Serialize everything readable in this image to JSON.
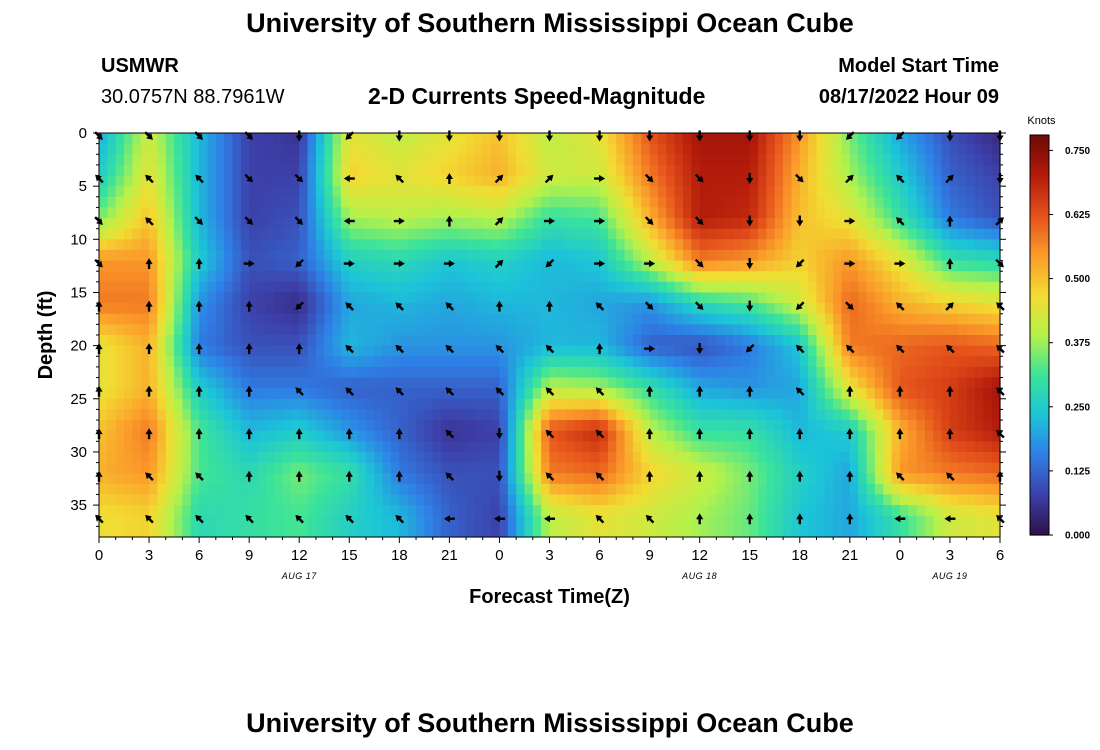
{
  "header": {
    "title": "University of Southern Mississippi Ocean Cube",
    "station": "USMWR",
    "coords": "30.0757N  88.7961W",
    "subtitle": "2-D Currents Speed-Magnitude",
    "model_label": "Model Start Time",
    "model_time": "08/17/2022 Hour 09"
  },
  "footer": {
    "title": "University of Southern Mississippi Ocean Cube"
  },
  "colors": {
    "arrow": "#000000",
    "colormap": [
      "#2c0f4a",
      "#3d3fa8",
      "#2f7fe6",
      "#1cc4d8",
      "#3be39a",
      "#b6f24a",
      "#f2dc32",
      "#fb9a2a",
      "#e4511b",
      "#b21a0a",
      "#6e0a05"
    ]
  },
  "chart_data": {
    "type": "heatmap",
    "title": "2-D Currents Speed-Magnitude",
    "xlabel": "Forecast Time(Z)",
    "ylabel": "Depth (ft)",
    "x_hours": [
      0,
      3,
      6,
      9,
      12,
      15,
      18,
      21,
      24,
      27,
      30,
      33,
      36,
      39,
      42,
      45,
      48,
      51,
      54
    ],
    "x_tick_labels": [
      "0",
      "3",
      "6",
      "9",
      "12",
      "15",
      "18",
      "21",
      "0",
      "3",
      "6",
      "9",
      "12",
      "15",
      "18",
      "21",
      "0",
      "3",
      "6"
    ],
    "date_labels": [
      {
        "label": "AUG 17",
        "hour": 12
      },
      {
        "label": "AUG 18",
        "hour": 36
      },
      {
        "label": "AUG 19",
        "hour": 51
      }
    ],
    "xlim": [
      0,
      54
    ],
    "y_depths": [
      0,
      4,
      8,
      12,
      16,
      20,
      24,
      28,
      32,
      36
    ],
    "y_ticks": [
      0,
      5,
      10,
      15,
      20,
      25,
      30,
      35
    ],
    "ylim": [
      0,
      38
    ],
    "colorbar": {
      "label": "Knots",
      "ticks": [
        "0.000",
        "0.125",
        "0.250",
        "0.375",
        "0.500",
        "0.625",
        "0.750"
      ],
      "range": [
        0,
        0.78
      ]
    },
    "speed": [
      [
        0.2,
        0.42,
        0.22,
        0.08,
        0.06,
        0.45,
        0.4,
        0.45,
        0.5,
        0.4,
        0.45,
        0.62,
        0.72,
        0.72,
        0.55,
        0.35,
        0.2,
        0.1,
        0.04
      ],
      [
        0.25,
        0.45,
        0.22,
        0.08,
        0.08,
        0.48,
        0.45,
        0.48,
        0.52,
        0.42,
        0.42,
        0.58,
        0.7,
        0.7,
        0.52,
        0.38,
        0.25,
        0.12,
        0.08
      ],
      [
        0.35,
        0.5,
        0.22,
        0.08,
        0.1,
        0.38,
        0.4,
        0.38,
        0.4,
        0.3,
        0.32,
        0.52,
        0.7,
        0.68,
        0.5,
        0.45,
        0.3,
        0.15,
        0.1
      ],
      [
        0.55,
        0.55,
        0.25,
        0.1,
        0.12,
        0.26,
        0.28,
        0.24,
        0.26,
        0.22,
        0.24,
        0.4,
        0.58,
        0.55,
        0.48,
        0.55,
        0.45,
        0.3,
        0.28
      ],
      [
        0.58,
        0.58,
        0.18,
        0.08,
        0.05,
        0.2,
        0.22,
        0.2,
        0.22,
        0.22,
        0.2,
        0.18,
        0.28,
        0.32,
        0.42,
        0.6,
        0.52,
        0.48,
        0.45
      ],
      [
        0.45,
        0.52,
        0.15,
        0.1,
        0.1,
        0.22,
        0.18,
        0.18,
        0.18,
        0.22,
        0.22,
        0.12,
        0.1,
        0.15,
        0.24,
        0.58,
        0.6,
        0.62,
        0.6
      ],
      [
        0.45,
        0.52,
        0.25,
        0.15,
        0.15,
        0.12,
        0.12,
        0.12,
        0.12,
        0.4,
        0.38,
        0.3,
        0.2,
        0.18,
        0.2,
        0.45,
        0.62,
        0.65,
        0.72
      ],
      [
        0.5,
        0.58,
        0.32,
        0.22,
        0.25,
        0.18,
        0.12,
        0.06,
        0.08,
        0.62,
        0.68,
        0.4,
        0.3,
        0.3,
        0.22,
        0.25,
        0.52,
        0.65,
        0.7
      ],
      [
        0.52,
        0.55,
        0.32,
        0.28,
        0.35,
        0.3,
        0.15,
        0.1,
        0.1,
        0.58,
        0.6,
        0.48,
        0.42,
        0.35,
        0.26,
        0.2,
        0.55,
        0.58,
        0.6
      ],
      [
        0.46,
        0.48,
        0.28,
        0.3,
        0.32,
        0.26,
        0.22,
        0.12,
        0.08,
        0.4,
        0.45,
        0.42,
        0.38,
        0.34,
        0.24,
        0.2,
        0.3,
        0.42,
        0.45
      ]
    ],
    "direction_deg": [
      [
        135,
        135,
        135,
        135,
        180,
        225,
        180,
        180,
        180,
        180,
        180,
        180,
        180,
        180,
        180,
        225,
        225,
        180,
        180
      ],
      [
        315,
        315,
        315,
        135,
        135,
        270,
        315,
        0,
        45,
        45,
        90,
        135,
        135,
        180,
        135,
        45,
        315,
        45,
        180
      ],
      [
        135,
        315,
        135,
        135,
        135,
        270,
        90,
        0,
        45,
        90,
        90,
        135,
        135,
        180,
        180,
        90,
        315,
        0,
        45
      ],
      [
        135,
        0,
        0,
        90,
        225,
        90,
        90,
        90,
        45,
        225,
        90,
        90,
        135,
        180,
        225,
        90,
        90,
        0,
        135
      ],
      [
        0,
        0,
        0,
        0,
        225,
        315,
        315,
        315,
        0,
        0,
        315,
        135,
        135,
        180,
        225,
        135,
        315,
        45,
        315
      ],
      [
        0,
        0,
        0,
        0,
        0,
        315,
        315,
        315,
        315,
        315,
        0,
        90,
        180,
        225,
        315,
        315,
        315,
        315,
        315
      ],
      [
        0,
        0,
        0,
        0,
        315,
        315,
        315,
        315,
        315,
        315,
        315,
        0,
        0,
        0,
        315,
        0,
        0,
        0,
        315
      ],
      [
        0,
        0,
        0,
        0,
        0,
        0,
        0,
        315,
        180,
        315,
        315,
        0,
        0,
        0,
        0,
        0,
        0,
        0,
        315
      ],
      [
        0,
        315,
        315,
        0,
        0,
        0,
        0,
        315,
        180,
        315,
        315,
        0,
        0,
        0,
        0,
        0,
        315,
        315,
        0
      ],
      [
        315,
        315,
        315,
        315,
        315,
        315,
        315,
        270,
        270,
        270,
        315,
        315,
        0,
        0,
        0,
        0,
        270,
        270,
        315
      ]
    ]
  }
}
